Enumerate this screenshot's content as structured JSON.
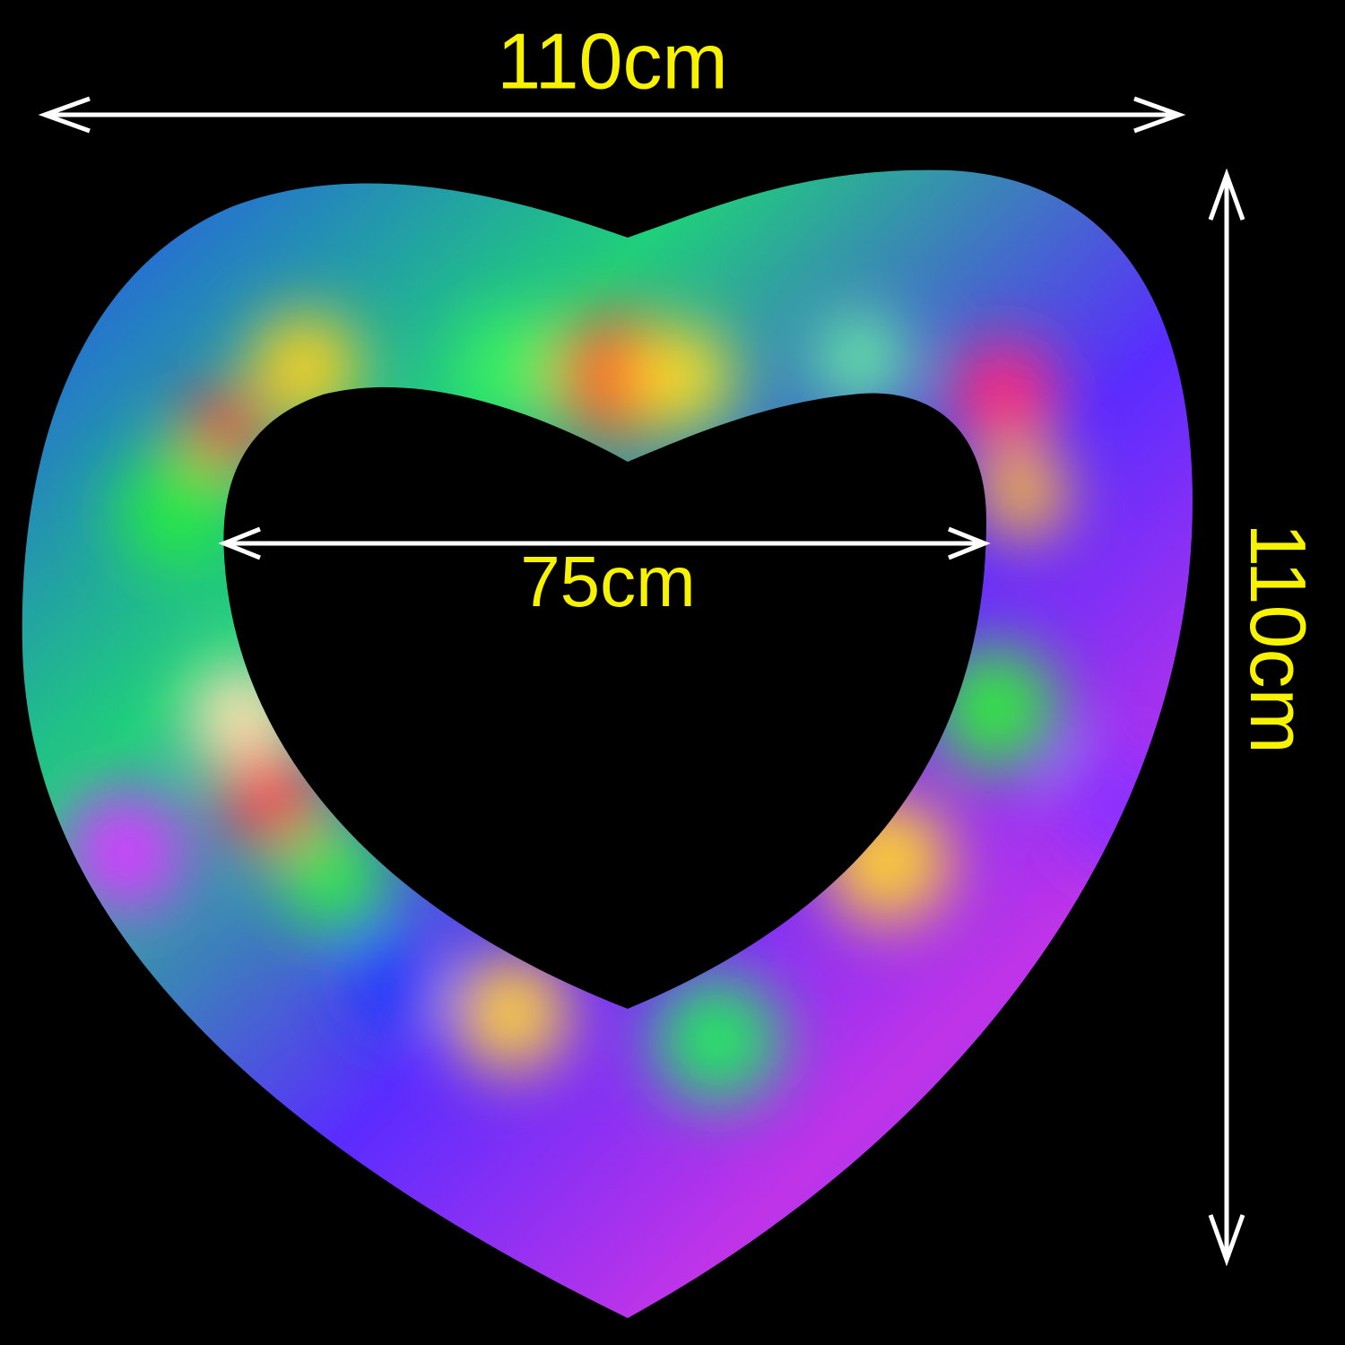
{
  "dimensions": {
    "outer_width": "110cm",
    "outer_height": "110cm",
    "inner_width": "75cm"
  }
}
